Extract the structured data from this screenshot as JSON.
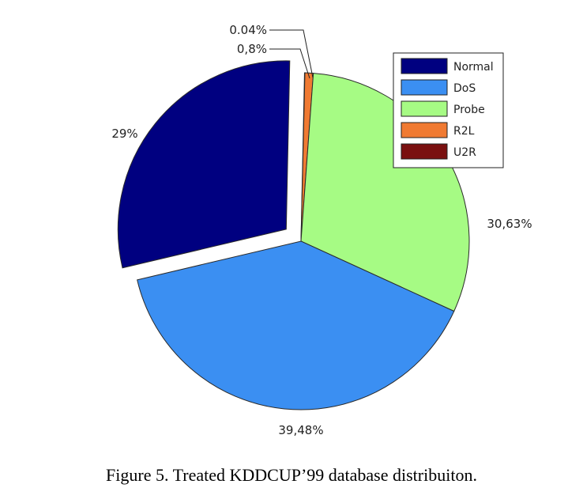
{
  "caption": "Figure 5.    Treated KDDCUP’99 database distribuiton.",
  "chart_data": {
    "type": "pie",
    "title": "",
    "categories": [
      "Normal",
      "DoS",
      "Probe",
      "R2L",
      "U2R"
    ],
    "values": [
      29,
      39.48,
      30.63,
      0.8,
      0.04
    ],
    "data_labels": [
      "29%",
      "39,48%",
      "30,63%",
      "0,8%",
      "0.04%"
    ],
    "colors": [
      "#000080",
      "#3b8ff2",
      "#a6fb84",
      "#f07a32",
      "#7a1010"
    ],
    "exploded": [
      "Normal"
    ],
    "legend": {
      "placement": "top-right",
      "entries": [
        "Normal",
        "DoS",
        "Probe",
        "R2L",
        "U2R"
      ]
    }
  }
}
